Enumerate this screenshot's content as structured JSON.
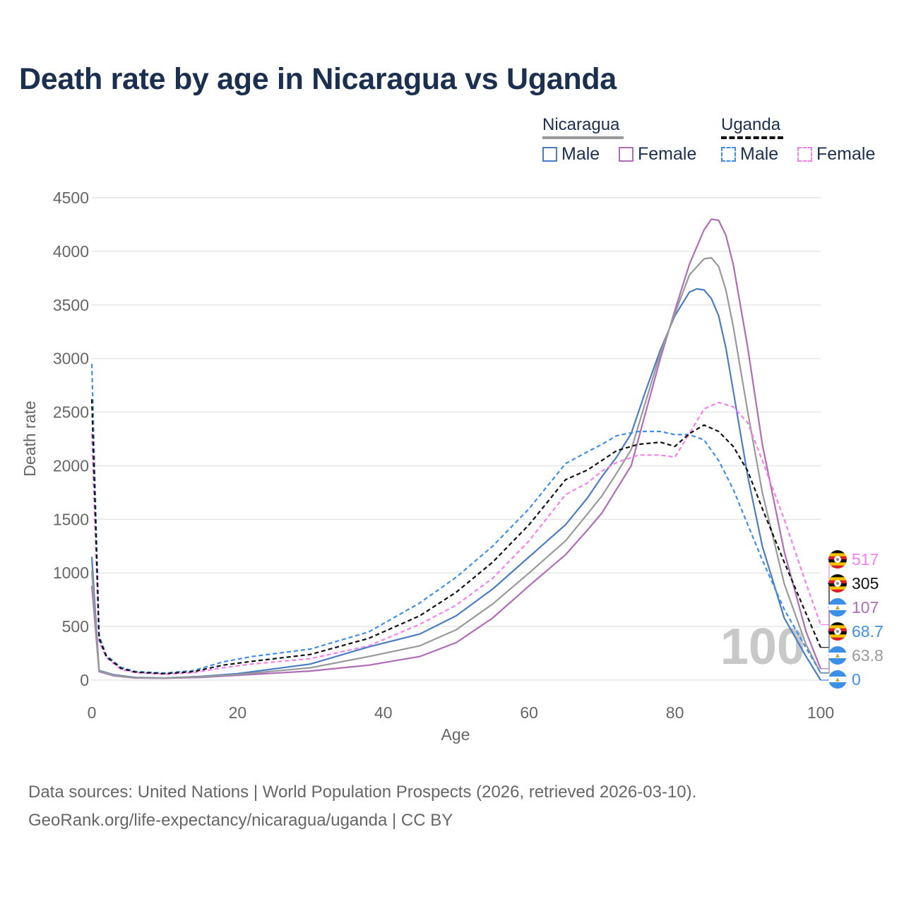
{
  "title": "Death rate by age in Nicaragua vs Uganda",
  "legend": {
    "groups": [
      {
        "name": "Nicaragua",
        "line_color": "#999999",
        "dashed": false,
        "items": [
          {
            "label": "Male",
            "color": "#4a7dc4"
          },
          {
            "label": "Female",
            "color": "#b06cb7"
          }
        ]
      },
      {
        "name": "Uganda",
        "line_color": "#111111",
        "dashed": true,
        "items": [
          {
            "label": "Male",
            "color": "#3f8ee8"
          },
          {
            "label": "Female",
            "color": "#f67ff0"
          }
        ]
      }
    ]
  },
  "footer": {
    "line1": "Data sources: United Nations | World Population Prospects (2026, retrieved 2026-03-10).",
    "line2": "GeoRank.org/life-expectancy/nicaragua/uganda | CC BY"
  },
  "chart_data": {
    "type": "line",
    "title": "Death rate by age in Nicaragua vs Uganda",
    "xlabel": "Age",
    "ylabel": "Death rate",
    "xlim": [
      0,
      100
    ],
    "ylim": [
      0,
      4500
    ],
    "x_ticks": [
      0,
      20,
      40,
      60,
      80,
      100
    ],
    "y_ticks": [
      0,
      500,
      1000,
      1500,
      2000,
      2500,
      3000,
      3500,
      4000,
      4500
    ],
    "grid": true,
    "watermark": "100",
    "series": [
      {
        "name": "Nicaragua Male",
        "country": "Nicaragua",
        "color": "#4a7dc4",
        "dashed": false,
        "end_label": "0",
        "label_color": "#3f8ee8",
        "x": [
          0,
          1,
          3,
          6,
          10,
          15,
          20,
          30,
          38,
          45,
          50,
          55,
          60,
          65,
          68,
          70,
          72,
          74,
          76,
          78,
          80,
          82,
          83,
          84,
          85,
          86,
          87,
          88,
          90,
          92,
          95,
          98,
          100
        ],
        "y": [
          1150,
          90,
          50,
          25,
          20,
          35,
          60,
          150,
          310,
          430,
          600,
          850,
          1150,
          1450,
          1700,
          1900,
          2080,
          2300,
          2700,
          3080,
          3400,
          3620,
          3650,
          3640,
          3560,
          3400,
          3100,
          2700,
          1900,
          1250,
          580,
          220,
          0
        ]
      },
      {
        "name": "Nicaragua Female",
        "country": "Nicaragua",
        "color": "#b06cb7",
        "dashed": false,
        "end_label": "107",
        "label_color": "#b06cb7",
        "x": [
          0,
          1,
          3,
          6,
          10,
          15,
          20,
          30,
          38,
          45,
          50,
          55,
          60,
          65,
          68,
          70,
          72,
          74,
          76,
          78,
          80,
          82,
          84,
          85,
          86,
          87,
          88,
          90,
          92,
          95,
          98,
          100
        ],
        "y": [
          880,
          80,
          40,
          20,
          18,
          25,
          45,
          85,
          140,
          220,
          350,
          580,
          880,
          1170,
          1400,
          1560,
          1780,
          2000,
          2500,
          3000,
          3450,
          3880,
          4200,
          4300,
          4290,
          4150,
          3880,
          3100,
          2200,
          1200,
          450,
          107
        ]
      },
      {
        "name": "Nicaragua (both sexes)",
        "country": "Nicaragua",
        "color": "#999999",
        "dashed": false,
        "end_label": "63.8",
        "label_color": "#999999",
        "x": [
          0,
          1,
          3,
          6,
          10,
          15,
          20,
          30,
          38,
          45,
          50,
          55,
          60,
          65,
          68,
          70,
          72,
          74,
          76,
          78,
          80,
          82,
          84,
          85,
          86,
          87,
          88,
          90,
          92,
          95,
          98,
          100
        ],
        "y": [
          1020,
          85,
          45,
          22,
          19,
          30,
          52,
          115,
          220,
          320,
          470,
          710,
          1000,
          1300,
          1550,
          1720,
          1930,
          2150,
          2600,
          3050,
          3420,
          3780,
          3930,
          3940,
          3860,
          3640,
          3300,
          2500,
          1750,
          900,
          330,
          63.8
        ]
      },
      {
        "name": "Uganda Male",
        "country": "Uganda",
        "color": "#3f8ee8",
        "dashed": true,
        "end_label": "68.7",
        "label_color": "#3f8ee8",
        "x": [
          0,
          1,
          2,
          4,
          6,
          10,
          14,
          18,
          22,
          30,
          38,
          45,
          50,
          55,
          60,
          65,
          68,
          70,
          72,
          75,
          78,
          80,
          82,
          84,
          86,
          88,
          90,
          92,
          95,
          98,
          100
        ],
        "y": [
          2950,
          420,
          230,
          120,
          80,
          65,
          90,
          170,
          220,
          290,
          450,
          720,
          960,
          1250,
          1600,
          2020,
          2130,
          2200,
          2280,
          2320,
          2320,
          2290,
          2290,
          2240,
          2050,
          1780,
          1450,
          1120,
          660,
          300,
          68.7
        ]
      },
      {
        "name": "Uganda Female",
        "country": "Uganda",
        "color": "#f67ff0",
        "dashed": true,
        "end_label": "517",
        "label_color": "#f67ff0",
        "x": [
          0,
          1,
          2,
          4,
          6,
          10,
          14,
          18,
          22,
          30,
          38,
          45,
          50,
          55,
          60,
          65,
          68,
          70,
          72,
          75,
          78,
          80,
          82,
          84,
          86,
          88,
          90,
          92,
          95,
          98,
          100
        ],
        "y": [
          2300,
          360,
          210,
          100,
          70,
          55,
          70,
          115,
          150,
          200,
          320,
          520,
          700,
          950,
          1300,
          1730,
          1840,
          1950,
          2030,
          2100,
          2100,
          2080,
          2300,
          2530,
          2590,
          2550,
          2400,
          2050,
          1500,
          900,
          517
        ]
      },
      {
        "name": "Uganda (both sexes)",
        "country": "Uganda",
        "color": "#111111",
        "dashed": true,
        "end_label": "305",
        "label_color": "#111111",
        "x": [
          0,
          1,
          2,
          4,
          6,
          10,
          14,
          18,
          22,
          30,
          38,
          45,
          50,
          55,
          60,
          65,
          68,
          70,
          72,
          75,
          78,
          80,
          82,
          84,
          86,
          88,
          90,
          92,
          95,
          98,
          100
        ],
        "y": [
          2620,
          390,
          220,
          110,
          75,
          60,
          80,
          140,
          175,
          240,
          390,
          600,
          820,
          1100,
          1450,
          1870,
          1960,
          2050,
          2140,
          2200,
          2220,
          2180,
          2300,
          2380,
          2320,
          2180,
          1950,
          1600,
          1100,
          620,
          305
        ]
      }
    ]
  }
}
